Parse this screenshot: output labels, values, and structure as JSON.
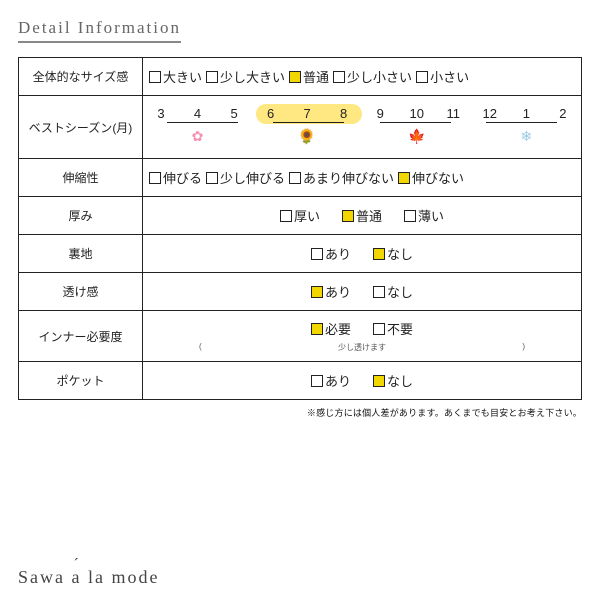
{
  "title": "Detail Information",
  "rows": {
    "size": {
      "label": "全体的なサイズ感",
      "options": [
        "大きい",
        "少し大きい",
        "普通",
        "少し小さい",
        "小さい"
      ],
      "selected": [
        2
      ],
      "center": false
    },
    "stretch": {
      "label": "伸縮性",
      "options": [
        "伸びる",
        "少し伸びる",
        "あまり伸びない",
        "伸びない"
      ],
      "selected": [
        3
      ],
      "center": false
    },
    "thick": {
      "label": "厚み",
      "options": [
        "厚い",
        "普通",
        "薄い"
      ],
      "selected": [
        1
      ],
      "center": true
    },
    "lining": {
      "label": "裏地",
      "options": [
        "あり",
        "なし"
      ],
      "selected": [
        1
      ],
      "center": true
    },
    "sheer": {
      "label": "透け感",
      "options": [
        "あり",
        "なし"
      ],
      "selected": [
        0
      ],
      "center": true
    },
    "inner": {
      "label": "インナー必要度",
      "options": [
        "必要",
        "不要"
      ],
      "selected": [
        0
      ],
      "center": true,
      "note_left": "(",
      "note_mid": "少し透けます",
      "note_right": ")"
    },
    "pocket": {
      "label": "ポケット",
      "options": [
        "あり",
        "なし"
      ],
      "selected": [
        1
      ],
      "center": true
    }
  },
  "season": {
    "label": "ベストシーズン(月)",
    "months": [
      "3",
      "4",
      "5",
      "6",
      "7",
      "8",
      "9",
      "10",
      "11",
      "12",
      "1",
      "2"
    ],
    "highlight": {
      "from": 3,
      "to": 5,
      "color": "#ffe36b"
    },
    "segments": [
      [
        0,
        2
      ],
      [
        3,
        5
      ],
      [
        6,
        8
      ],
      [
        9,
        11
      ]
    ],
    "icons": [
      "flower-pink",
      "sunflower",
      "leaf",
      "snow"
    ],
    "icon_glyphs": [
      "✿",
      "🌻",
      "🍁",
      "❄"
    ]
  },
  "footnote": "※感じ方には個人差があります。あくまでも目安とお考え下さい。",
  "brand": {
    "a": "Sawa ",
    "b": "a",
    "c": " la mode"
  },
  "colors": {
    "border": "#222222",
    "hl": "#ffe36b",
    "checkbox_selected": "#f2d600"
  }
}
